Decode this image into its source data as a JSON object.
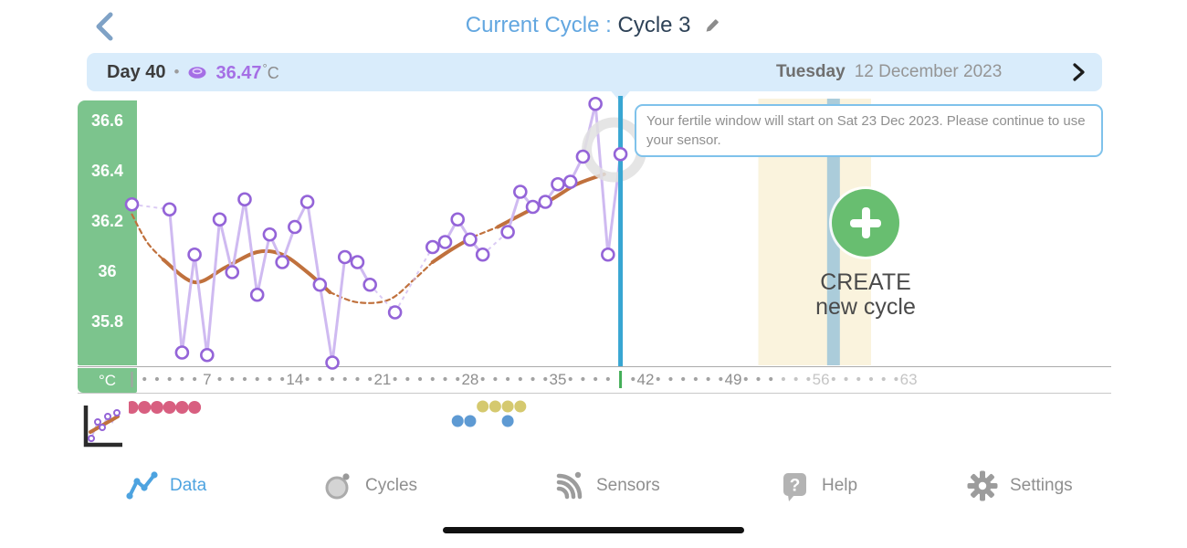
{
  "header": {
    "title_prefix": "Current Cycle :",
    "title_value": "Cycle 3"
  },
  "info_bar": {
    "day_label": "Day 40",
    "separator": "•",
    "temperature": "36.47",
    "degree": "°",
    "unit": "C",
    "weekday": "Tuesday",
    "date": "12 December 2023"
  },
  "tooltip": {
    "text": "Your fertile window will start on Sat 23 Dec 2023. Please continue to use your sensor."
  },
  "create_button": {
    "line1": "CREATE",
    "line2": "new cycle"
  },
  "nav": {
    "items": [
      {
        "label": "Data",
        "active": true
      },
      {
        "label": "Cycles",
        "active": false
      },
      {
        "label": "Sensors",
        "active": false
      },
      {
        "label": "Help",
        "active": false
      },
      {
        "label": "Settings",
        "active": false
      }
    ]
  },
  "colors": {
    "bar_bg": "#d9ecfb",
    "green_axis": "#7cc48d",
    "axis_text": "#8e8e8e",
    "axis_faded": "#c5c5c5",
    "axis_dot": "#a3a3a3",
    "current_day_tick": "#43ae57",
    "current_day_line": "#38a6d2",
    "series_point": "#9464d8",
    "series_line": "#cfbaf1",
    "smoothed": "#c0713d",
    "ring": "#e0e0e0",
    "fertile_window": "#faf3dd",
    "ovulation_strip": "#abccda",
    "period": "#d85f80",
    "marker_yellow": "#d5c96f",
    "marker_blue": "#5e9ad3",
    "nav_active": "#4da3e0"
  },
  "chart_data": {
    "type": "line",
    "ylabel": "°C",
    "y_ticks": [
      "36.6",
      "36.4",
      "36.2",
      "36",
      "35.8"
    ],
    "x_ticks": [
      7,
      14,
      21,
      28,
      35,
      42,
      49,
      56,
      63
    ],
    "x_range_days": [
      1,
      63
    ],
    "ylim": [
      35.65,
      36.72
    ],
    "grid": false,
    "legend": "none",
    "current_day": 40,
    "current_temp": 36.47,
    "points": [
      [
        1,
        36.27
      ],
      [
        4,
        36.25
      ],
      [
        5,
        35.68
      ],
      [
        6,
        36.07
      ],
      [
        7,
        35.67
      ],
      [
        8,
        36.21
      ],
      [
        9,
        36.0
      ],
      [
        10,
        36.29
      ],
      [
        11,
        35.91
      ],
      [
        12,
        36.15
      ],
      [
        13,
        36.04
      ],
      [
        14,
        36.18
      ],
      [
        15,
        36.28
      ],
      [
        16,
        35.95
      ],
      [
        17,
        35.64
      ],
      [
        18,
        36.06
      ],
      [
        19,
        36.04
      ],
      [
        20,
        35.95
      ],
      [
        22,
        35.84
      ],
      [
        25,
        36.1
      ],
      [
        26,
        36.12
      ],
      [
        27,
        36.21
      ],
      [
        28,
        36.13
      ],
      [
        29,
        36.07
      ],
      [
        31,
        36.16
      ],
      [
        32,
        36.32
      ],
      [
        33,
        36.26
      ],
      [
        34,
        36.28
      ],
      [
        35,
        36.35
      ],
      [
        36,
        36.36
      ],
      [
        37,
        36.46
      ],
      [
        38,
        36.67
      ],
      [
        39,
        36.07
      ],
      [
        40,
        36.47
      ]
    ],
    "smoothed_average_segments": [
      {
        "style": "dashed",
        "points": [
          [
            1,
            36.23
          ],
          [
            2.2,
            36.12
          ],
          [
            3.5,
            36.05
          ]
        ]
      },
      {
        "style": "solid",
        "points": [
          [
            3.5,
            36.05
          ],
          [
            6,
            35.96
          ],
          [
            8.5,
            36.02
          ],
          [
            11,
            36.08
          ],
          [
            13,
            36.07
          ],
          [
            15,
            36.0
          ],
          [
            16.8,
            35.92
          ]
        ]
      },
      {
        "style": "dashed",
        "points": [
          [
            16.8,
            35.92
          ],
          [
            19,
            35.88
          ],
          [
            21.5,
            35.89
          ],
          [
            23.5,
            35.97
          ],
          [
            25,
            36.04
          ]
        ]
      },
      {
        "style": "solid",
        "points": [
          [
            25,
            36.04
          ],
          [
            26.5,
            36.09
          ],
          [
            28.2,
            36.14
          ]
        ]
      },
      {
        "style": "dashed",
        "points": [
          [
            28.2,
            36.14
          ],
          [
            30.2,
            36.18
          ]
        ]
      },
      {
        "style": "solid",
        "points": [
          [
            30.2,
            36.18
          ],
          [
            32.5,
            36.24
          ],
          [
            34.5,
            36.29
          ],
          [
            36.5,
            36.35
          ],
          [
            38.7,
            36.39
          ]
        ]
      }
    ],
    "predicted_fertile_window_days": [
      51,
      59
    ],
    "predicted_ovulation_day": 57,
    "period_days": [
      1,
      2,
      3,
      4,
      5,
      6
    ],
    "yellow_marker_days": [
      29,
      30,
      31,
      32
    ],
    "blue_marker_days": [
      27,
      28,
      31
    ],
    "axis_faded_from_day": 53
  }
}
